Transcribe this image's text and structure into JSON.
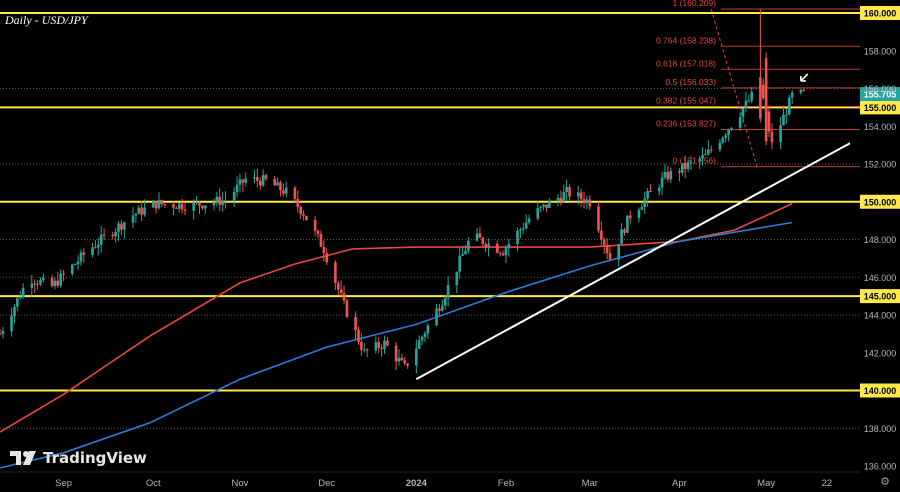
{
  "chart_title": "Daily - USD/JPY",
  "brand": "TradingView",
  "icons": {
    "settings": "gear-icon",
    "logo": "tradingview-logo-icon",
    "arrow": "arrow-annotation-icon"
  },
  "colors": {
    "background": "#000000",
    "candle_up": "#26a69a",
    "candle_down": "#ef5350",
    "sma_red": "#e8473c",
    "sma_blue": "#2d7ad6",
    "horizontal_level": "#ffe94a",
    "trendline": "#ffffff",
    "fib": "#e5463c",
    "grid": "#3a3a3a",
    "axis_text": "#b2b5be"
  },
  "chart_data": {
    "type": "candlestick",
    "title": "Daily - USD/JPY",
    "ylim": [
      136,
      160.8
    ],
    "y_ticks": [
      "136.000",
      "138.000",
      "140.000",
      "142.000",
      "144.000",
      "145.000",
      "146.000",
      "148.000",
      "150.000",
      "152.000",
      "154.000",
      "155.000",
      "155.705",
      "156.000",
      "158.000",
      "160.000"
    ],
    "y_tick_values": [
      136,
      138,
      140,
      142,
      144,
      145,
      146,
      148,
      150,
      152,
      154,
      155,
      155.705,
      156,
      158,
      160
    ],
    "x_ticks": [
      "Sep",
      "Oct",
      "Nov",
      "Dec",
      "2024",
      "Feb",
      "Mar",
      "Apr",
      "May",
      "22"
    ],
    "x_tick_dates": [
      "2023-09-01",
      "2023-10-02",
      "2023-11-01",
      "2023-12-01",
      "2024-01-01",
      "2024-02-01",
      "2024-03-01",
      "2024-04-01",
      "2024-05-01",
      "2024-05-22"
    ],
    "x_range": [
      "2023-08-10",
      "2024-05-30"
    ],
    "last_price": "155.705",
    "horizontal_levels": [
      140,
      145,
      150,
      155,
      160
    ],
    "dotted_levels": [
      138,
      144,
      146,
      148,
      152,
      156
    ],
    "fibonacci": [
      {
        "label": "1 (160.209)",
        "price": 160.209
      },
      {
        "label": "0.764 (158.238)",
        "price": 158.238
      },
      {
        "label": "0.618 (157.018)",
        "price": 157.018
      },
      {
        "label": "0.5 (156.033)",
        "price": 156.033
      },
      {
        "label": "0.382 (155.047)",
        "price": 155.047
      },
      {
        "label": "0.236 (153.827)",
        "price": 153.827
      },
      {
        "label": "0 (151.856)",
        "price": 151.856
      }
    ],
    "trendline": [
      [
        "2024-01-01",
        140.6
      ],
      [
        "2024-05-30",
        153.1
      ]
    ],
    "sma_red": [
      [
        "2023-08-10",
        137.8
      ],
      [
        "2023-09-01",
        139.8
      ],
      [
        "2023-10-01",
        142.9
      ],
      [
        "2023-11-01",
        145.7
      ],
      [
        "2023-11-20",
        146.7
      ],
      [
        "2023-12-10",
        147.5
      ],
      [
        "2024-01-01",
        147.6
      ],
      [
        "2024-02-01",
        147.6
      ],
      [
        "2024-03-01",
        147.6
      ],
      [
        "2024-04-01",
        147.9
      ],
      [
        "2024-04-20",
        148.5
      ],
      [
        "2024-05-10",
        149.9
      ]
    ],
    "sma_blue": [
      [
        "2023-08-10",
        135.9
      ],
      [
        "2023-09-01",
        136.7
      ],
      [
        "2023-10-01",
        138.3
      ],
      [
        "2023-11-01",
        140.6
      ],
      [
        "2023-12-01",
        142.3
      ],
      [
        "2024-01-01",
        143.5
      ],
      [
        "2024-02-01",
        145.2
      ],
      [
        "2024-03-01",
        146.6
      ],
      [
        "2024-04-01",
        147.9
      ],
      [
        "2024-05-10",
        148.9
      ]
    ],
    "ohlc_path": [
      [
        "2023-08-10",
        143.0
      ],
      [
        "2023-08-20",
        146.0
      ],
      [
        "2023-08-28",
        145.5
      ],
      [
        "2023-09-10",
        147.5
      ],
      [
        "2023-09-25",
        149.3
      ],
      [
        "2023-10-03",
        149.9
      ],
      [
        "2023-10-15",
        149.8
      ],
      [
        "2023-10-27",
        150.1
      ],
      [
        "2023-11-03",
        151.2
      ],
      [
        "2023-11-10",
        151.1
      ],
      [
        "2023-11-17",
        150.5
      ],
      [
        "2023-11-23",
        149.4
      ],
      [
        "2023-11-30",
        147.5
      ],
      [
        "2023-12-07",
        144.5
      ],
      [
        "2023-12-14",
        142.0
      ],
      [
        "2023-12-21",
        142.5
      ],
      [
        "2023-12-28",
        141.2
      ],
      [
        "2024-01-10",
        144.8
      ],
      [
        "2024-01-20",
        148.2
      ],
      [
        "2024-01-31",
        147.4
      ],
      [
        "2024-02-10",
        149.3
      ],
      [
        "2024-02-22",
        150.5
      ],
      [
        "2024-03-01",
        150.0
      ],
      [
        "2024-03-08",
        147.0
      ],
      [
        "2024-03-15",
        149.3
      ],
      [
        "2024-03-27",
        151.3
      ],
      [
        "2024-04-10",
        152.4
      ],
      [
        "2024-04-20",
        154.3
      ],
      [
        "2024-04-29",
        156.2
      ],
      [
        "2024-05-03",
        153.0
      ],
      [
        "2024-05-10",
        155.6
      ],
      [
        "2024-05-14",
        155.7
      ]
    ]
  }
}
